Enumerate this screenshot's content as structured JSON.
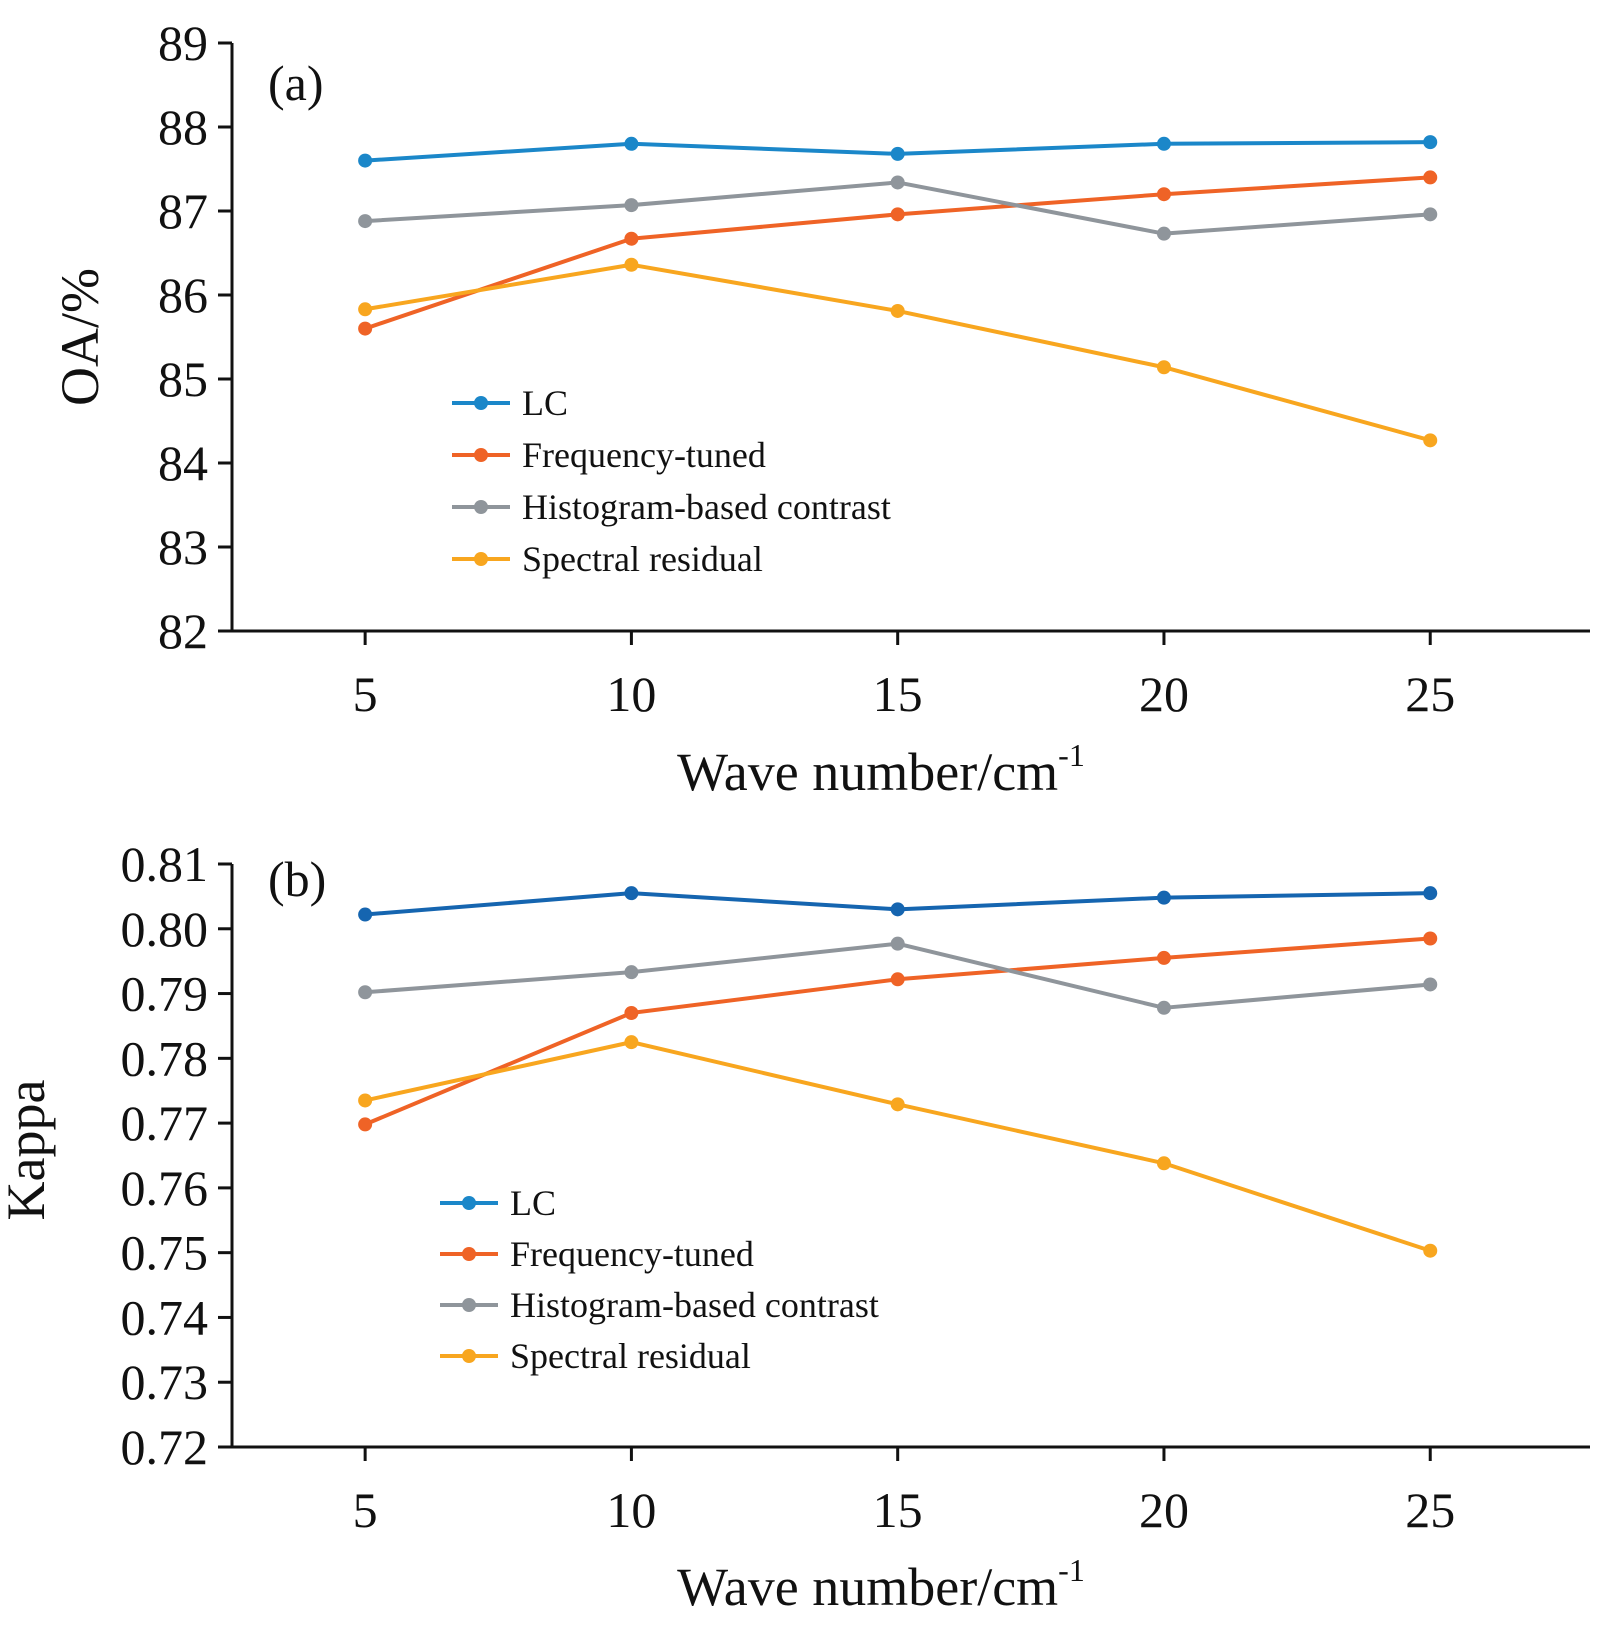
{
  "chart_data": [
    {
      "type": "line",
      "panel_label": "(a)",
      "xlabel": "Wave number/cm",
      "xlabel_sup": "-1",
      "ylabel": "OA/%",
      "x": [
        5,
        10,
        15,
        20,
        25
      ],
      "x_ticks": [
        "5",
        "10",
        "15",
        "20",
        "25"
      ],
      "xlim": [
        2.5,
        28
      ],
      "ylim": [
        82,
        89
      ],
      "y_ticks": [
        "82",
        "83",
        "84",
        "85",
        "86",
        "87",
        "88",
        "89"
      ],
      "legend_position": "lower-left",
      "grid": false,
      "series": [
        {
          "name": "LC",
          "color": "#1b87c9",
          "values": [
            87.6,
            87.8,
            87.68,
            87.8,
            87.82
          ]
        },
        {
          "name": "Frequency-tuned",
          "color": "#ef6326",
          "values": [
            85.6,
            86.67,
            86.96,
            87.2,
            87.4
          ]
        },
        {
          "name": "Histogram-based contrast",
          "color": "#8f959b",
          "values": [
            86.88,
            87.07,
            87.34,
            86.73,
            86.96
          ]
        },
        {
          "name": "Spectral residual",
          "color": "#f8a61f",
          "values": [
            85.83,
            86.36,
            85.81,
            85.14,
            84.27
          ]
        }
      ]
    },
    {
      "type": "line",
      "panel_label": "(b)",
      "xlabel": "Wave number/cm",
      "xlabel_sup": "-1",
      "ylabel": "Kappa",
      "x": [
        5,
        10,
        15,
        20,
        25
      ],
      "x_ticks": [
        "5",
        "10",
        "15",
        "20",
        "25"
      ],
      "xlim": [
        2.5,
        28
      ],
      "ylim": [
        0.72,
        0.81
      ],
      "y_ticks": [
        "0.72",
        "0.73",
        "0.74",
        "0.75",
        "0.76",
        "0.77",
        "0.78",
        "0.79",
        "0.80",
        "0.81"
      ],
      "legend_position": "lower-left",
      "grid": false,
      "series": [
        {
          "name": "LC",
          "color": "#1565b0",
          "legend_color": "#1b87c9",
          "values": [
            0.8022,
            0.8055,
            0.803,
            0.8048,
            0.8055
          ]
        },
        {
          "name": "Frequency-tuned",
          "color": "#ef6326",
          "values": [
            0.7698,
            0.787,
            0.7922,
            0.7955,
            0.7985
          ]
        },
        {
          "name": "Histogram-based contrast",
          "color": "#8f959b",
          "values": [
            0.7902,
            0.7933,
            0.7977,
            0.7878,
            0.7914
          ]
        },
        {
          "name": "Spectral residual",
          "color": "#f8a61f",
          "values": [
            0.7735,
            0.7825,
            0.7729,
            0.7638,
            0.7503
          ]
        }
      ]
    }
  ]
}
